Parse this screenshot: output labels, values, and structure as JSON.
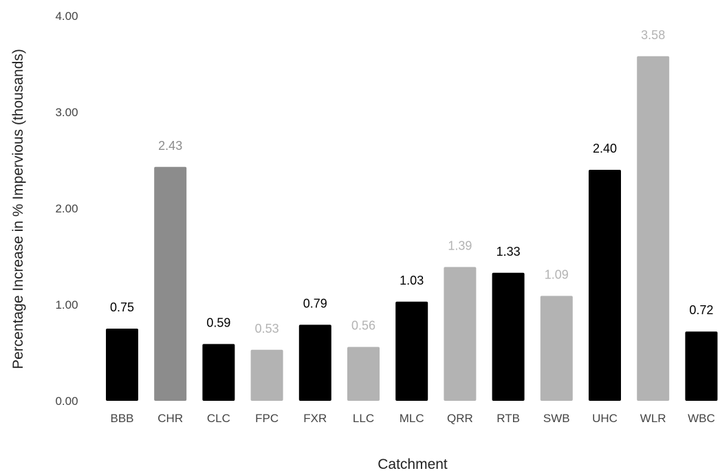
{
  "chart_data": {
    "type": "bar",
    "title": "",
    "xlabel": "Catchment",
    "ylabel": "Percentage Increase in % Impervious (thousands)",
    "ylim": [
      0,
      4
    ],
    "yticks": [
      "0.00",
      "1.00",
      "2.00",
      "3.00",
      "4.00"
    ],
    "ytick_values": [
      0,
      1,
      2,
      3,
      4
    ],
    "grid": false,
    "legend": "none",
    "categories": [
      "BBB",
      "CHR",
      "CLC",
      "FPC",
      "FXR",
      "LLC",
      "MLC",
      "QRR",
      "RTB",
      "SWB",
      "UHC",
      "WLR",
      "WBC"
    ],
    "values": [
      0.75,
      2.43,
      0.59,
      0.53,
      0.79,
      0.56,
      1.03,
      1.39,
      1.33,
      1.09,
      2.4,
      3.58,
      0.72
    ],
    "value_labels": [
      "0.75",
      "2.43",
      "0.59",
      "0.53",
      "0.79",
      "0.56",
      "1.03",
      "1.39",
      "1.33",
      "1.09",
      "2.40",
      "3.58",
      "0.72"
    ],
    "bar_colors": [
      "#000000",
      "#8c8c8c",
      "#000000",
      "#b3b3b3",
      "#000000",
      "#b3b3b3",
      "#000000",
      "#b3b3b3",
      "#000000",
      "#b3b3b3",
      "#000000",
      "#b3b3b3",
      "#000000"
    ],
    "label_colors": [
      "#000000",
      "#8c8c8c",
      "#000000",
      "#b3b3b3",
      "#000000",
      "#b3b3b3",
      "#000000",
      "#b3b3b3",
      "#000000",
      "#b3b3b3",
      "#000000",
      "#b3b3b3",
      "#000000"
    ]
  }
}
